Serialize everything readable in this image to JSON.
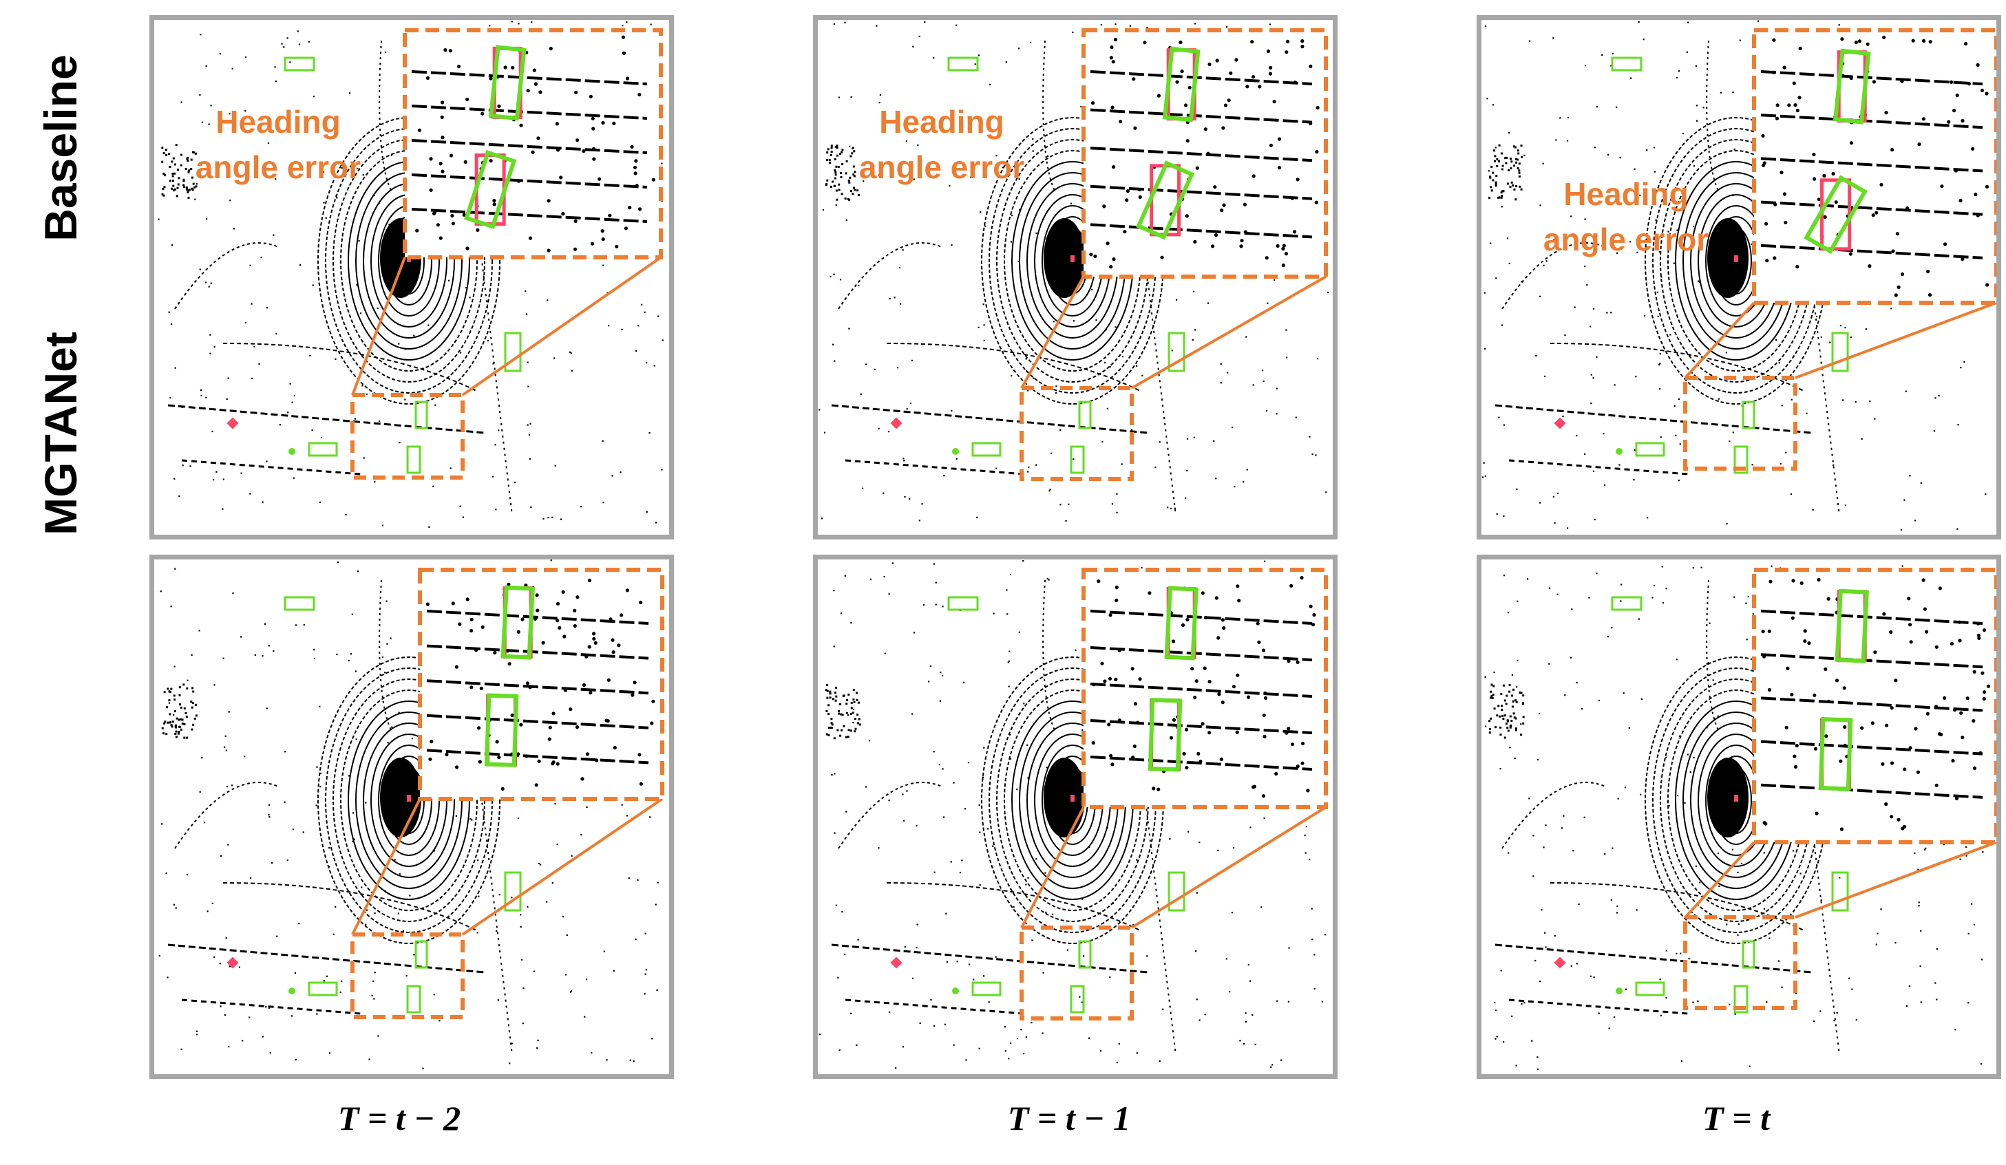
{
  "figure": {
    "row_labels": [
      "Baseline",
      "MGTANet"
    ],
    "column_labels": [
      "T = t − 2",
      "T = t − 1",
      "T = t"
    ],
    "annotation": {
      "line1": "Heading",
      "line2": "angle error"
    },
    "colors": {
      "panel_border": "#a6a6a6",
      "zoom_frame": "#ed7d31",
      "prediction_box": "#66dd22",
      "ground_truth_box": "#ff4466",
      "lidar_points": "#000000"
    },
    "icons": {
      "ego_vehicle": "ego-vehicle-icon",
      "lidar_points": "lidar-point-cloud-icon"
    }
  }
}
